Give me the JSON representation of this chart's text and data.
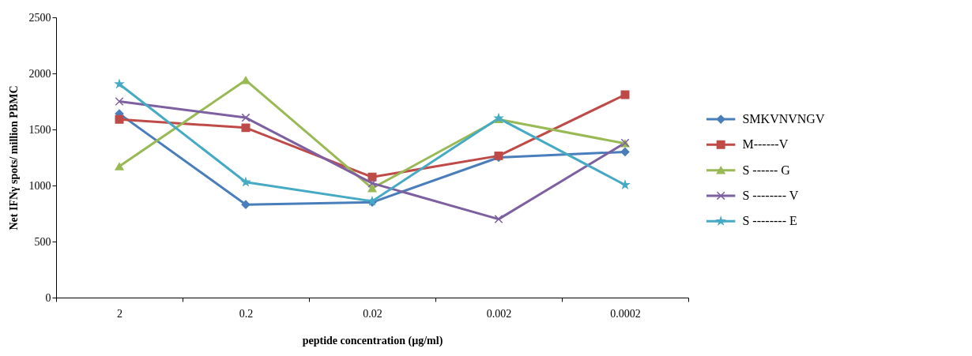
{
  "chart_data": {
    "type": "line",
    "xlabel": "peptide concentration (µg/ml)",
    "ylabel": "Net IFNγ spots/ million PBMC",
    "categories": [
      "2",
      "0.2",
      "0.02",
      "0.002",
      "0.0002"
    ],
    "ylim": [
      0,
      2500
    ],
    "yticks": [
      0,
      500,
      1000,
      1500,
      2000,
      2500
    ],
    "grid": false,
    "legend": "right",
    "line_style": "solid",
    "series": [
      {
        "name": "SMKVNVNGV",
        "color": "#4a7ebb",
        "marker": "diamond",
        "values": [
          1640,
          830,
          850,
          1250,
          1300
        ]
      },
      {
        "name": "M------V",
        "color": "#be4b48",
        "marker": "square",
        "values": [
          1590,
          1515,
          1075,
          1265,
          1810
        ]
      },
      {
        "name": "S ------ G",
        "color": "#98b954",
        "marker": "triangle",
        "values": [
          1170,
          1940,
          975,
          1590,
          1375
        ]
      },
      {
        "name": "S -------- V",
        "color": "#7d60a0",
        "marker": "cross",
        "values": [
          1750,
          1605,
          1020,
          700,
          1380
        ]
      },
      {
        "name": "S -------- E",
        "color": "#46aac5",
        "marker": "star",
        "values": [
          1905,
          1030,
          860,
          1600,
          1005
        ]
      }
    ]
  }
}
